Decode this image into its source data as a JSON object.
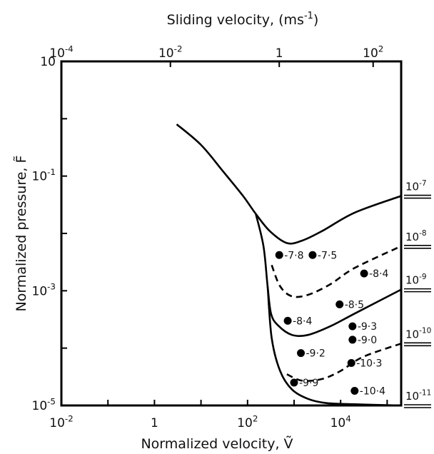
{
  "chart_data": {
    "type": "line",
    "bottom_axis": {
      "label": "Normalized velocity, Ṽ",
      "scale": "log",
      "range": [
        0.01,
        200000
      ],
      "ticks": [
        {
          "value": 0.01,
          "base": "10",
          "exp": "-2"
        },
        {
          "value": 1,
          "base": "1",
          "exp": ""
        },
        {
          "value": 100,
          "base": "10",
          "exp": "2"
        },
        {
          "value": 10000,
          "base": "10",
          "exp": "4"
        }
      ]
    },
    "top_axis": {
      "label": "Sliding velocity, (ms",
      "label_exp": "-1",
      "label_close": ")",
      "ticks": [
        {
          "value": 0.01,
          "base": "10",
          "exp": "-4"
        },
        {
          "value": 2.2,
          "base": "10",
          "exp": "-2"
        },
        {
          "value": 480,
          "base": "1",
          "exp": ""
        },
        {
          "value": 50000,
          "base": "10",
          "exp": "2"
        }
      ]
    },
    "left_axis": {
      "label": "Normalized pressure, F̃",
      "scale": "log",
      "range": [
        1e-05,
        10
      ],
      "ticks": [
        {
          "value": 10,
          "base": "10",
          "exp": ""
        },
        {
          "value": 0.1,
          "base": "10",
          "exp": "-1"
        },
        {
          "value": 0.001,
          "base": "10",
          "exp": "-3"
        },
        {
          "value": 1e-05,
          "base": "10",
          "exp": "-5"
        }
      ]
    },
    "series": [
      {
        "style": "solid",
        "label_base": "10",
        "label_exp": "-7",
        "points": [
          [
            3,
            0.8
          ],
          [
            10,
            0.35
          ],
          [
            30,
            0.12
          ],
          [
            80,
            0.045
          ],
          [
            150,
            0.022
          ],
          [
            300,
            0.011
          ],
          [
            700,
            0.0068
          ],
          [
            1500,
            0.0075
          ],
          [
            4000,
            0.011
          ],
          [
            20000,
            0.023
          ],
          [
            200000,
            0.045
          ]
        ]
      },
      {
        "style": "dashed",
        "label_base": "10",
        "label_exp": "-8",
        "points": [
          [
            330,
            0.0028
          ],
          [
            500,
            0.0012
          ],
          [
            900,
            0.0008
          ],
          [
            2000,
            0.00085
          ],
          [
            6000,
            0.0013
          ],
          [
            20000,
            0.0025
          ],
          [
            200000,
            0.006
          ]
        ]
      },
      {
        "style": "solid",
        "label_base": "10",
        "label_exp": "-9",
        "points": [
          [
            150,
            0.022
          ],
          [
            220,
            0.006
          ],
          [
            270,
            0.0012
          ],
          [
            320,
            0.0004
          ],
          [
            450,
            0.00025
          ],
          [
            900,
            0.00017
          ],
          [
            2000,
            0.00017
          ],
          [
            6000,
            0.00024
          ],
          [
            20000,
            0.0004
          ],
          [
            200000,
            0.00105
          ]
        ]
      },
      {
        "style": "dashed",
        "label_base": "10",
        "label_exp": "-10",
        "points": [
          [
            700,
            3.5e-05
          ],
          [
            1500,
            2.7e-05
          ],
          [
            4000,
            2.9e-05
          ],
          [
            10000,
            4e-05
          ],
          [
            30000,
            7e-05
          ],
          [
            200000,
            0.00012
          ]
        ]
      },
      {
        "style": "solid",
        "label_base": "10",
        "label_exp": "-11",
        "points": [
          [
            270,
            0.0012
          ],
          [
            330,
            0.00015
          ],
          [
            500,
            4e-05
          ],
          [
            900,
            1.9e-05
          ],
          [
            2000,
            1.3e-05
          ],
          [
            5000,
            1.1e-05
          ],
          [
            20000,
            1.05e-05
          ],
          [
            200000,
            1e-05
          ]
        ]
      }
    ],
    "points": [
      {
        "x": 480,
        "y": 0.0042,
        "label": "-7·8"
      },
      {
        "x": 2500,
        "y": 0.0042,
        "label": "-7·5"
      },
      {
        "x": 32000,
        "y": 0.002,
        "label": "-8·4"
      },
      {
        "x": 9500,
        "y": 0.00058,
        "label": "-8·5"
      },
      {
        "x": 730,
        "y": 0.0003,
        "label": "-8·4"
      },
      {
        "x": 18000,
        "y": 0.00024,
        "label": "-9·3"
      },
      {
        "x": 18000,
        "y": 0.00014,
        "label": "-9·0"
      },
      {
        "x": 1400,
        "y": 8.2e-05,
        "label": "-9·2"
      },
      {
        "x": 17000,
        "y": 5.5e-05,
        "label": "-10·3"
      },
      {
        "x": 1000,
        "y": 2.5e-05,
        "label": "-9·9"
      },
      {
        "x": 20000,
        "y": 1.8e-05,
        "label": "-10·4"
      }
    ]
  }
}
